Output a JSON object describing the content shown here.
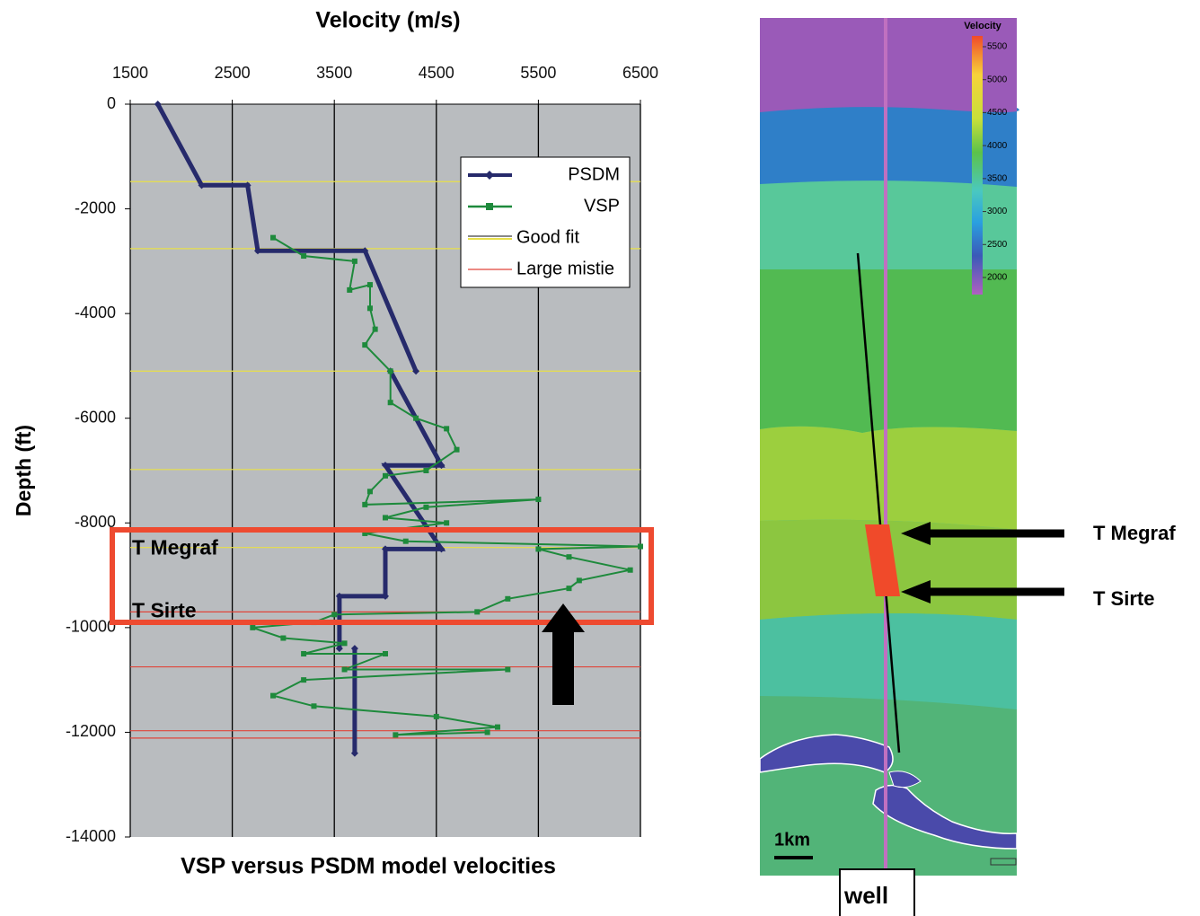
{
  "chart_data": {
    "type": "line",
    "title": "VSP versus PSDM model velocities",
    "x_label": "Velocity (m/s)",
    "y_label": "Depth (ft)",
    "xlim": [
      1500,
      6500
    ],
    "xticks": [
      1500,
      2500,
      3500,
      4500,
      5500,
      6500
    ],
    "ylim": [
      -14000,
      0
    ],
    "yticks": [
      0,
      -2000,
      -4000,
      -6000,
      -8000,
      -10000,
      -12000,
      -14000
    ],
    "grid": true,
    "legend": "upper right",
    "series": [
      {
        "name": "PSDM",
        "color": "#262a6b",
        "marker": "diamond",
        "x": [
          1770,
          2200,
          2650,
          2750,
          3800,
          4300,
          null,
          4050,
          4550,
          4000,
          4550,
          4000,
          4000,
          3550,
          3550,
          null,
          3700,
          3700
        ],
        "y": [
          0,
          -1550,
          -1550,
          -2800,
          -2800,
          -5100,
          null,
          -5100,
          -6900,
          -6900,
          -8500,
          -8500,
          -9400,
          -9400,
          -10400,
          null,
          -10400,
          -12400
        ]
      },
      {
        "name": "VSP",
        "color": "#1e8a3c",
        "marker": "square",
        "x": [
          2900,
          3200,
          3700,
          3650,
          3850,
          3850,
          3900,
          3800,
          4050,
          4050,
          4300,
          4600,
          4700,
          4400,
          4000,
          3850,
          3800,
          5500,
          4400,
          4000,
          4600,
          3800,
          4200,
          6500,
          5500,
          5800,
          6400,
          5900,
          5800,
          5200,
          4900,
          3500,
          3300,
          2700,
          3000,
          3600,
          3200,
          4000,
          3600,
          5200,
          3200,
          2900,
          3300,
          4500,
          5100,
          4100,
          5000
        ],
        "y": [
          -2550,
          -2900,
          -3000,
          -3550,
          -3450,
          -3900,
          -4300,
          -4600,
          -5100,
          -5700,
          -6000,
          -6200,
          -6600,
          -7000,
          -7100,
          -7400,
          -7650,
          -7550,
          -7700,
          -7900,
          -8000,
          -8200,
          -8350,
          -8450,
          -8500,
          -8650,
          -8900,
          -9100,
          -9250,
          -9450,
          -9700,
          -9750,
          -9900,
          -10000,
          -10200,
          -10300,
          -10500,
          -10500,
          -10800,
          -10800,
          -11000,
          -11300,
          -11500,
          -11700,
          -11900,
          -12050,
          -12000
        ]
      },
      {
        "name": "Good fit",
        "color": "#e8df4a",
        "y": [
          -1480,
          -2760,
          -5100,
          -6980,
          -8470
        ]
      },
      {
        "name": "Large mistie",
        "color": "#e0453a",
        "y": [
          -9700,
          -9900,
          -10750,
          -11970,
          -12110
        ]
      }
    ],
    "annotations": [
      {
        "text": "T Megraf",
        "y": -8500
      },
      {
        "text": "T Sirte",
        "y": -9700
      }
    ]
  },
  "section": {
    "colorbar_title": "Velocity",
    "colorbar_ticks": [
      5500,
      5000,
      4500,
      4000,
      3500,
      3000,
      2500,
      2000
    ],
    "scale_label": "1km",
    "well_label": "well",
    "markers": [
      "T Megraf",
      "T Sirte"
    ]
  }
}
